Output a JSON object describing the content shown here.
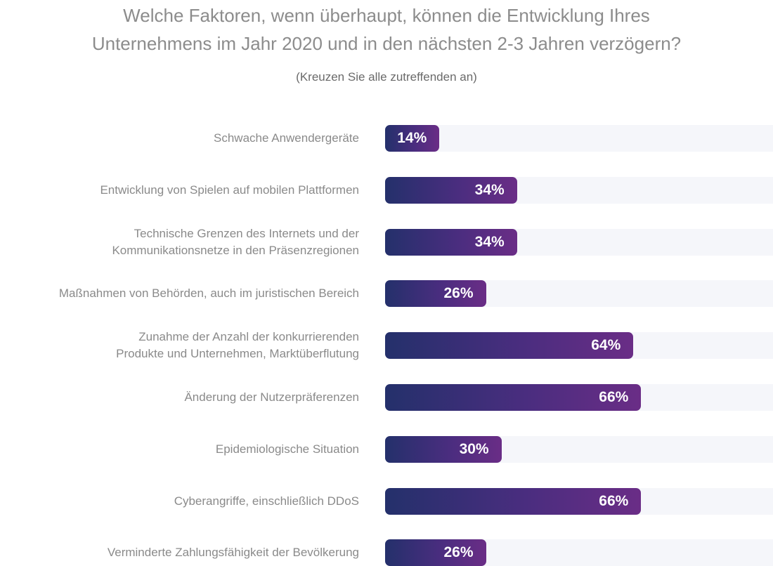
{
  "chart_data": {
    "type": "bar",
    "orientation": "horizontal",
    "title": "Welche Faktoren, wenn überhaupt, können die Entwicklung Ihres Unternehmens im Jahr 2020 und in den nächsten 2-3 Jahren verzögern?",
    "title_lines": [
      "Welche Faktoren, wenn überhaupt, können die Entwicklung Ihres",
      "Unternehmens im Jahr 2020 und in den nächsten 2-3 Jahren verzögern?"
    ],
    "subtitle": "(Kreuzen Sie alle zutreffenden an)",
    "xlim": [
      0,
      100
    ],
    "grid": false,
    "categories": [
      {
        "lines": [
          "Schwache Anwendergeräte"
        ]
      },
      {
        "lines": [
          "Entwicklung von Spielen auf mobilen Plattformen"
        ]
      },
      {
        "lines": [
          "Technische Grenzen des Internets und der",
          "Kommunikationsnetze in den Präsenzregionen"
        ]
      },
      {
        "lines": [
          "Maßnahmen von Behörden, auch im juristischen Bereich"
        ]
      },
      {
        "lines": [
          "Zunahme der Anzahl der konkurrierenden",
          "Produkte und Unternehmen, Marktüberflutung"
        ]
      },
      {
        "lines": [
          "Änderung der Nutzerpräferenzen"
        ]
      },
      {
        "lines": [
          "Epidemiologische Situation"
        ]
      },
      {
        "lines": [
          "Cyberangriffe, einschließlich DDoS"
        ]
      },
      {
        "lines": [
          "Verminderte Zahlungsfähigkeit der Bevölkerung"
        ]
      }
    ],
    "values": [
      14,
      34,
      34,
      26,
      64,
      66,
      30,
      66,
      26
    ],
    "value_labels": [
      "14%",
      "34%",
      "34%",
      "26%",
      "64%",
      "66%",
      "30%",
      "66%",
      "26%"
    ],
    "colors": {
      "bar_start": "#24306b",
      "bar_end": "#6a2d86",
      "track": "#f5f6fa",
      "label_text": "#8a8a8a",
      "title_text": "#8c8c8c"
    }
  }
}
